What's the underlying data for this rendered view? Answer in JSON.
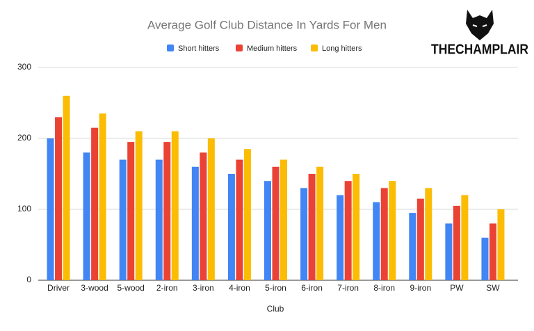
{
  "chart_data": {
    "type": "bar",
    "title": "Average Golf Club Distance In Yards For Men",
    "x_label": "Club",
    "categories": [
      "Driver",
      "3-wood",
      "5-wood",
      "2-iron",
      "3-iron",
      "4-iron",
      "5-iron",
      "6-iron",
      "7-iron",
      "8-iron",
      "9-iron",
      "PW",
      "SW"
    ],
    "series": [
      {
        "name": "Short hitters",
        "color": "#4285f4",
        "values": [
          200,
          180,
          170,
          170,
          160,
          150,
          140,
          130,
          120,
          110,
          95,
          80,
          60
        ]
      },
      {
        "name": "Medium hitters",
        "color": "#ea4335",
        "values": [
          230,
          215,
          195,
          195,
          180,
          170,
          160,
          150,
          140,
          130,
          115,
          105,
          80
        ]
      },
      {
        "name": "Long hitters",
        "color": "#fbbc04",
        "values": [
          260,
          235,
          210,
          210,
          200,
          185,
          170,
          160,
          150,
          140,
          130,
          120,
          100
        ]
      }
    ],
    "ylim": [
      0,
      300
    ],
    "yticks": [
      0,
      100,
      200,
      300
    ],
    "grid": true,
    "legend": "top"
  },
  "logo": {
    "text": "THECHAMPLAIR"
  }
}
